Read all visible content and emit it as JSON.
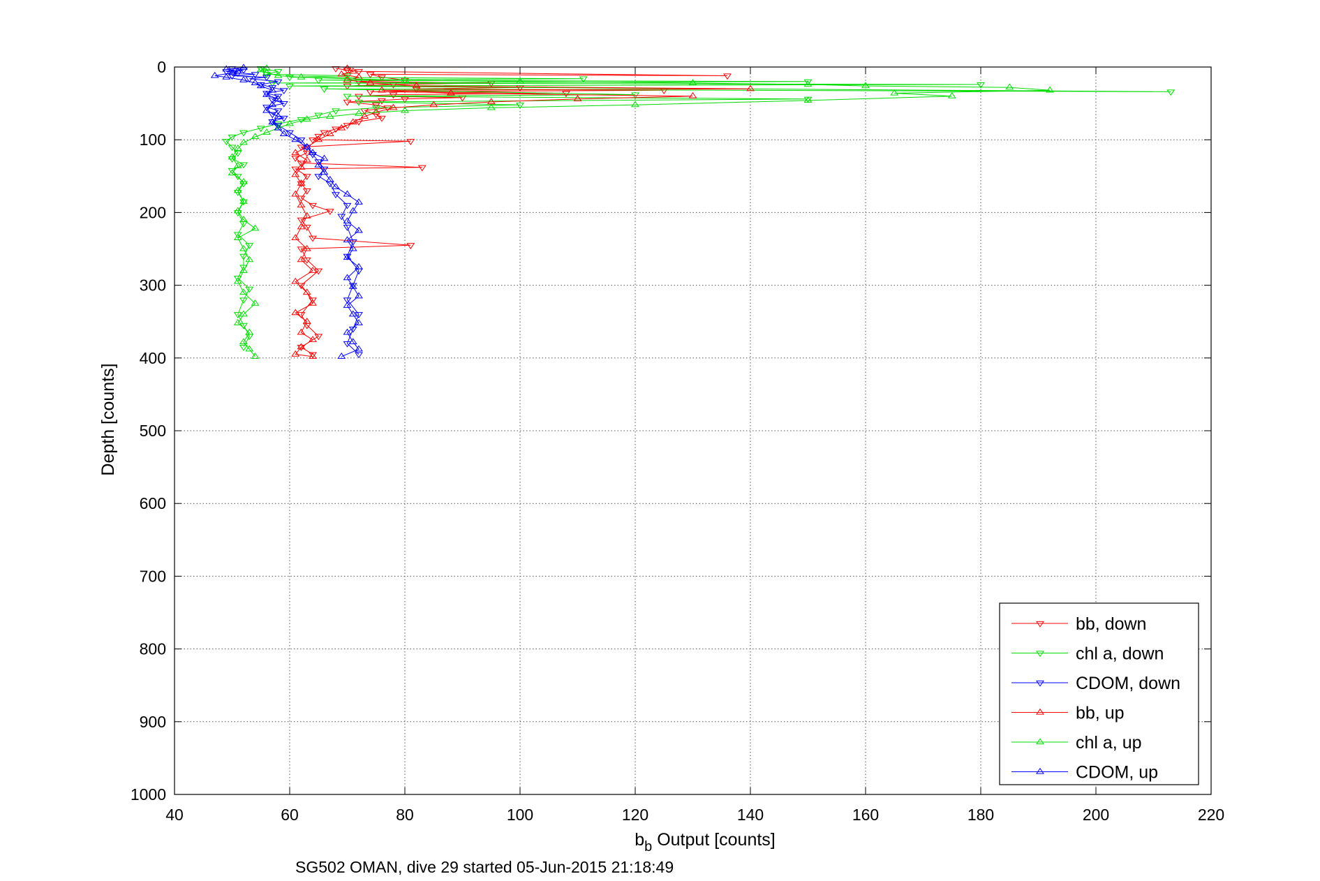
{
  "chart_data": {
    "type": "scatter",
    "xlabel_main": "b",
    "xlabel_sub": "b",
    "xlabel_rest": " Output [counts]",
    "ylabel": "Depth [counts]",
    "caption": "SG502 OMAN, dive 29 started 05-Jun-2015 21:18:49",
    "xlim": [
      40,
      220
    ],
    "ylim": [
      0,
      1000
    ],
    "y_reversed": true,
    "grid": true,
    "legend_position": "bottom-right",
    "x_ticks": [
      "40",
      "60",
      "80",
      "100",
      "120",
      "140",
      "160",
      "180",
      "200",
      "220"
    ],
    "y_ticks": [
      "0",
      "100",
      "200",
      "300",
      "400",
      "500",
      "600",
      "700",
      "800",
      "900",
      "1000"
    ],
    "series": [
      {
        "name": "bb, down",
        "color": "#ff0000",
        "marker": "triangle-down",
        "points": [
          [
            68,
            2
          ],
          [
            70,
            4
          ],
          [
            72,
            6
          ],
          [
            136,
            12
          ],
          [
            74,
            10
          ],
          [
            76,
            14
          ],
          [
            80,
            18
          ],
          [
            72,
            20
          ],
          [
            95,
            22
          ],
          [
            78,
            24
          ],
          [
            70,
            26
          ],
          [
            100,
            28
          ],
          [
            82,
            30
          ],
          [
            125,
            32
          ],
          [
            74,
            34
          ],
          [
            108,
            36
          ],
          [
            78,
            38
          ],
          [
            72,
            40
          ],
          [
            90,
            42
          ],
          [
            80,
            44
          ],
          [
            76,
            46
          ],
          [
            70,
            48
          ],
          [
            75,
            52
          ],
          [
            77,
            56
          ],
          [
            73,
            60
          ],
          [
            75,
            65
          ],
          [
            76,
            70
          ],
          [
            72,
            75
          ],
          [
            70,
            80
          ],
          [
            68,
            85
          ],
          [
            66,
            90
          ],
          [
            65,
            95
          ],
          [
            64,
            100
          ],
          [
            81,
            102
          ],
          [
            62,
            110
          ],
          [
            63,
            118
          ],
          [
            61,
            125
          ],
          [
            62,
            132
          ],
          [
            83,
            138
          ],
          [
            61,
            140
          ],
          [
            63,
            150
          ],
          [
            62,
            160
          ],
          [
            63,
            170
          ],
          [
            62,
            180
          ],
          [
            64,
            190
          ],
          [
            67,
            198
          ],
          [
            62,
            210
          ],
          [
            63,
            220
          ],
          [
            64,
            235
          ],
          [
            81,
            245
          ],
          [
            62,
            250
          ],
          [
            63,
            265
          ],
          [
            65,
            280
          ],
          [
            62,
            300
          ],
          [
            64,
            320
          ],
          [
            62,
            340
          ],
          [
            63,
            355
          ],
          [
            65,
            370
          ],
          [
            62,
            385
          ],
          [
            64,
            395
          ]
        ]
      },
      {
        "name": "chl a, down",
        "color": "#00dd00",
        "marker": "triangle-down",
        "points": [
          [
            55,
            2
          ],
          [
            58,
            6
          ],
          [
            56,
            10
          ],
          [
            70,
            12
          ],
          [
            60,
            14
          ],
          [
            111,
            16
          ],
          [
            65,
            18
          ],
          [
            150,
            20
          ],
          [
            57,
            22
          ],
          [
            180,
            24
          ],
          [
            60,
            26
          ],
          [
            213,
            34
          ],
          [
            66,
            30
          ],
          [
            120,
            38
          ],
          [
            70,
            40
          ],
          [
            150,
            44
          ],
          [
            72,
            48
          ],
          [
            100,
            52
          ],
          [
            75,
            56
          ],
          [
            68,
            60
          ],
          [
            65,
            66
          ],
          [
            62,
            72
          ],
          [
            58,
            78
          ],
          [
            55,
            84
          ],
          [
            52,
            90
          ],
          [
            50,
            96
          ],
          [
            49,
            102
          ],
          [
            50,
            110
          ],
          [
            51,
            118
          ],
          [
            50,
            126
          ],
          [
            52,
            134
          ],
          [
            50,
            142
          ],
          [
            51,
            150
          ],
          [
            52,
            160
          ],
          [
            51,
            172
          ],
          [
            52,
            185
          ],
          [
            51,
            200
          ],
          [
            52,
            215
          ],
          [
            51,
            230
          ],
          [
            53,
            245
          ],
          [
            52,
            260
          ],
          [
            52,
            275
          ],
          [
            51,
            290
          ],
          [
            53,
            305
          ],
          [
            52,
            320
          ],
          [
            51,
            340
          ],
          [
            52,
            355
          ],
          [
            53,
            370
          ],
          [
            52,
            385
          ]
        ]
      },
      {
        "name": "CDOM, down",
        "color": "#0000ff",
        "marker": "triangle-down",
        "points": [
          [
            50,
            2
          ],
          [
            52,
            4
          ],
          [
            49,
            6
          ],
          [
            51,
            8
          ],
          [
            54,
            10
          ],
          [
            50,
            12
          ],
          [
            56,
            14
          ],
          [
            53,
            16
          ],
          [
            58,
            20
          ],
          [
            55,
            24
          ],
          [
            57,
            28
          ],
          [
            59,
            32
          ],
          [
            56,
            36
          ],
          [
            58,
            40
          ],
          [
            57,
            45
          ],
          [
            59,
            50
          ],
          [
            56,
            55
          ],
          [
            58,
            60
          ],
          [
            57,
            65
          ],
          [
            59,
            70
          ],
          [
            57,
            75
          ],
          [
            58,
            80
          ],
          [
            60,
            90
          ],
          [
            62,
            100
          ],
          [
            63,
            110
          ],
          [
            64,
            120
          ],
          [
            65,
            130
          ],
          [
            66,
            140
          ],
          [
            65,
            150
          ],
          [
            67,
            160
          ],
          [
            68,
            175
          ],
          [
            70,
            190
          ],
          [
            69,
            205
          ],
          [
            70,
            220
          ],
          [
            71,
            240
          ],
          [
            70,
            260
          ],
          [
            72,
            280
          ],
          [
            71,
            300
          ],
          [
            70,
            320
          ],
          [
            72,
            340
          ],
          [
            71,
            360
          ],
          [
            70,
            380
          ],
          [
            72,
            395
          ]
        ]
      },
      {
        "name": "bb, up",
        "color": "#ff0000",
        "marker": "triangle-up",
        "points": [
          [
            64,
            398
          ],
          [
            61,
            395
          ],
          [
            62,
            385
          ],
          [
            64,
            375
          ],
          [
            62,
            365
          ],
          [
            63,
            350
          ],
          [
            61,
            338
          ],
          [
            64,
            325
          ],
          [
            63,
            310
          ],
          [
            61,
            295
          ],
          [
            64,
            280
          ],
          [
            62,
            265
          ],
          [
            63,
            250
          ],
          [
            61,
            235
          ],
          [
            62,
            220
          ],
          [
            63,
            205
          ],
          [
            62,
            190
          ],
          [
            61,
            175
          ],
          [
            62,
            160
          ],
          [
            61,
            148
          ],
          [
            62,
            138
          ],
          [
            63,
            128
          ],
          [
            61,
            118
          ],
          [
            63,
            110
          ],
          [
            65,
            100
          ],
          [
            67,
            92
          ],
          [
            69,
            84
          ],
          [
            71,
            76
          ],
          [
            73,
            68
          ],
          [
            75,
            62
          ],
          [
            78,
            56
          ],
          [
            85,
            52
          ],
          [
            95,
            48
          ],
          [
            110,
            44
          ],
          [
            130,
            40
          ],
          [
            88,
            36
          ],
          [
            76,
            32
          ],
          [
            140,
            30
          ],
          [
            82,
            26
          ],
          [
            74,
            22
          ],
          [
            70,
            18
          ],
          [
            72,
            14
          ],
          [
            69,
            10
          ],
          [
            71,
            6
          ],
          [
            70,
            2
          ]
        ]
      },
      {
        "name": "chl a, up",
        "color": "#00dd00",
        "marker": "triangle-up",
        "points": [
          [
            54,
            398
          ],
          [
            53,
            388
          ],
          [
            52,
            378
          ],
          [
            53,
            365
          ],
          [
            51,
            352
          ],
          [
            52,
            340
          ],
          [
            54,
            325
          ],
          [
            52,
            310
          ],
          [
            51,
            295
          ],
          [
            52,
            280
          ],
          [
            53,
            265
          ],
          [
            52,
            250
          ],
          [
            51,
            235
          ],
          [
            54,
            222
          ],
          [
            52,
            210
          ],
          [
            51,
            198
          ],
          [
            52,
            185
          ],
          [
            51,
            170
          ],
          [
            52,
            158
          ],
          [
            50,
            146
          ],
          [
            51,
            136
          ],
          [
            50,
            124
          ],
          [
            51,
            112
          ],
          [
            52,
            104
          ],
          [
            54,
            96
          ],
          [
            56,
            90
          ],
          [
            58,
            84
          ],
          [
            60,
            78
          ],
          [
            63,
            72
          ],
          [
            67,
            68
          ],
          [
            72,
            64
          ],
          [
            80,
            60
          ],
          [
            95,
            56
          ],
          [
            120,
            52
          ],
          [
            150,
            46
          ],
          [
            175,
            40
          ],
          [
            165,
            36
          ],
          [
            192,
            32
          ],
          [
            185,
            28
          ],
          [
            160,
            26
          ],
          [
            150,
            24
          ],
          [
            130,
            22
          ],
          [
            100,
            20
          ],
          [
            80,
            18
          ],
          [
            70,
            16
          ],
          [
            62,
            14
          ],
          [
            58,
            12
          ],
          [
            56,
            8
          ],
          [
            55,
            4
          ],
          [
            56,
            2
          ]
        ]
      },
      {
        "name": "CDOM, up",
        "color": "#0000ff",
        "marker": "triangle-up",
        "points": [
          [
            69,
            398
          ],
          [
            72,
            388
          ],
          [
            71,
            378
          ],
          [
            70,
            365
          ],
          [
            72,
            352
          ],
          [
            71,
            340
          ],
          [
            70,
            328
          ],
          [
            72,
            315
          ],
          [
            71,
            302
          ],
          [
            70,
            290
          ],
          [
            72,
            275
          ],
          [
            70,
            262
          ],
          [
            71,
            250
          ],
          [
            70,
            238
          ],
          [
            72,
            225
          ],
          [
            70,
            212
          ],
          [
            71,
            198
          ],
          [
            72,
            186
          ],
          [
            70,
            175
          ],
          [
            68,
            165
          ],
          [
            67,
            155
          ],
          [
            66,
            145
          ],
          [
            65,
            135
          ],
          [
            66,
            126
          ],
          [
            64,
            118
          ],
          [
            63,
            110
          ],
          [
            61,
            100
          ],
          [
            59,
            92
          ],
          [
            58,
            84
          ],
          [
            57,
            76
          ],
          [
            58,
            68
          ],
          [
            56,
            60
          ],
          [
            57,
            52
          ],
          [
            58,
            44
          ],
          [
            56,
            38
          ],
          [
            57,
            32
          ],
          [
            55,
            26
          ],
          [
            54,
            22
          ],
          [
            52,
            18
          ],
          [
            49,
            14
          ],
          [
            47,
            12
          ],
          [
            50,
            8
          ],
          [
            51,
            6
          ],
          [
            49,
            3
          ],
          [
            52,
            1
          ]
        ]
      }
    ]
  }
}
